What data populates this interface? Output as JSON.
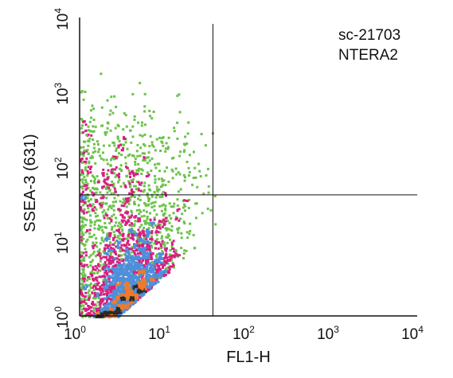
{
  "chart_data": {
    "type": "scatter",
    "subtype": "flow-cytometry-density-dot-plot",
    "xlabel": "FL1-H",
    "ylabel": "SSEA-3 (631)",
    "x_scale": "log",
    "y_scale": "log",
    "xlim": [
      1,
      10000
    ],
    "ylim": [
      1,
      10000
    ],
    "x_ticks": [
      {
        "base": "10",
        "exp": "0",
        "value": 1
      },
      {
        "base": "10",
        "exp": "1",
        "value": 10
      },
      {
        "base": "10",
        "exp": "2",
        "value": 100
      },
      {
        "base": "10",
        "exp": "3",
        "value": 1000
      },
      {
        "base": "10",
        "exp": "4",
        "value": 10000
      }
    ],
    "y_ticks": [
      {
        "base": "10",
        "exp": "0",
        "value": 1
      },
      {
        "base": "10",
        "exp": "1",
        "value": 10
      },
      {
        "base": "10",
        "exp": "2",
        "value": 100
      },
      {
        "base": "10",
        "exp": "3",
        "value": 1000
      },
      {
        "base": "10",
        "exp": "4",
        "value": 10000
      }
    ],
    "annotations": [
      "sc-21703",
      "NTERA2"
    ],
    "gate": {
      "x": 38,
      "y": 42
    },
    "grid": false,
    "density_colors": [
      "#6cc24a",
      "#d6217e",
      "#4f8fd8",
      "#f07a2a",
      "#2b2b2b"
    ],
    "populations": [
      {
        "center_log": [
          0.55,
          0.35
        ],
        "spread_log": [
          0.3,
          0.28
        ],
        "density": "high"
      },
      {
        "center_log": [
          0.7,
          0.75
        ],
        "spread_log": [
          0.25,
          0.3
        ],
        "density": "medium"
      },
      {
        "center_log": [
          0.5,
          1.7
        ],
        "spread_log": [
          0.45,
          0.55
        ],
        "density": "low"
      }
    ]
  }
}
